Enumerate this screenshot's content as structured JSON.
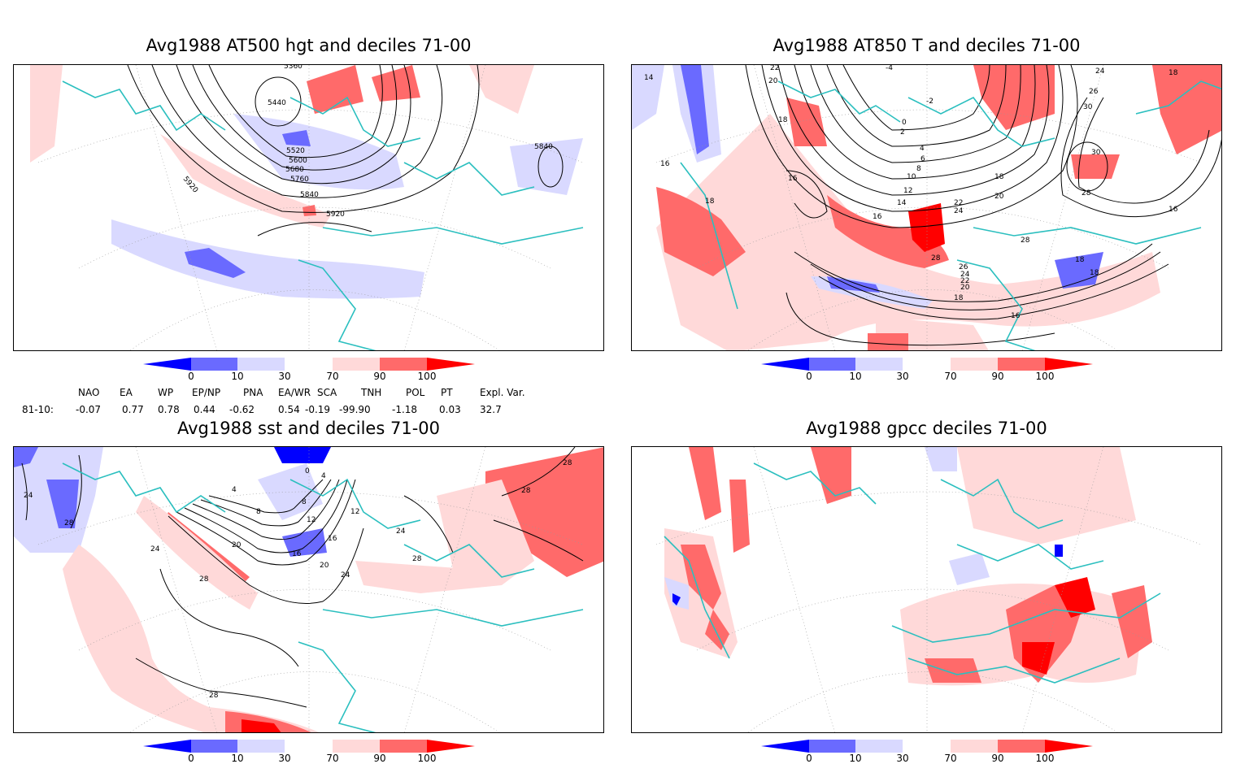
{
  "panels": [
    {
      "id": "p1",
      "title": "Avg1988 AT500 hgt and deciles 71-00",
      "contour_labels": [
        "5360",
        "5440",
        "5520",
        "5600",
        "5680",
        "5760",
        "5840",
        "5920",
        "5920",
        "5840"
      ]
    },
    {
      "id": "p2",
      "title": "Avg1988 AT850 T and deciles 71-00",
      "contour_labels": [
        "22",
        "20",
        "14",
        "18",
        "16",
        "16",
        "18",
        "16",
        "14",
        "12",
        "10",
        "8",
        "6",
        "4",
        "2",
        "0",
        "-2",
        "-4",
        "22",
        "24",
        "28",
        "26",
        "24",
        "22",
        "20",
        "18",
        "16",
        "28",
        "20",
        "18",
        "24",
        "26",
        "30",
        "30",
        "28",
        "18",
        "16",
        "18",
        "18"
      ]
    },
    {
      "id": "p3",
      "title": "Avg1988 sst and deciles 71-00",
      "contour_labels": [
        "24",
        "28",
        "28",
        "24",
        "28",
        "20",
        "16",
        "12",
        "8",
        "4",
        "0",
        "4",
        "8",
        "12",
        "16",
        "20",
        "24",
        "24",
        "28",
        "28",
        "28"
      ]
    },
    {
      "id": "p4",
      "title": "Avg1988 gpcc deciles 71-00",
      "contour_labels": []
    }
  ],
  "colorbar": {
    "labels": [
      "0",
      "10",
      "30",
      "70",
      "90",
      "100"
    ],
    "colors": {
      "c0": "#0000ff",
      "c1": "#6a6aff",
      "c2": "#d9d9ff",
      "c3": "#ffffff",
      "c4": "#ffd9d9",
      "c5": "#ff6a6a",
      "c6": "#ff0000"
    }
  },
  "indices": {
    "headers": [
      "NAO",
      "EA",
      "WP",
      "EP/NP",
      "PNA",
      "EA/WR",
      "SCA",
      "TNH",
      "POL",
      "PT",
      "Expl. Var."
    ],
    "row_label": "81-10:",
    "values": [
      "-0.07",
      "0.77",
      "0.78",
      "0.44",
      "-0.62",
      "0.54",
      "-0.19",
      "-99.90",
      "-1.18",
      "0.03",
      "32.7"
    ]
  },
  "colors": {
    "coast": "#2bbfbf",
    "contour": "#000000",
    "grid": "#888888"
  }
}
